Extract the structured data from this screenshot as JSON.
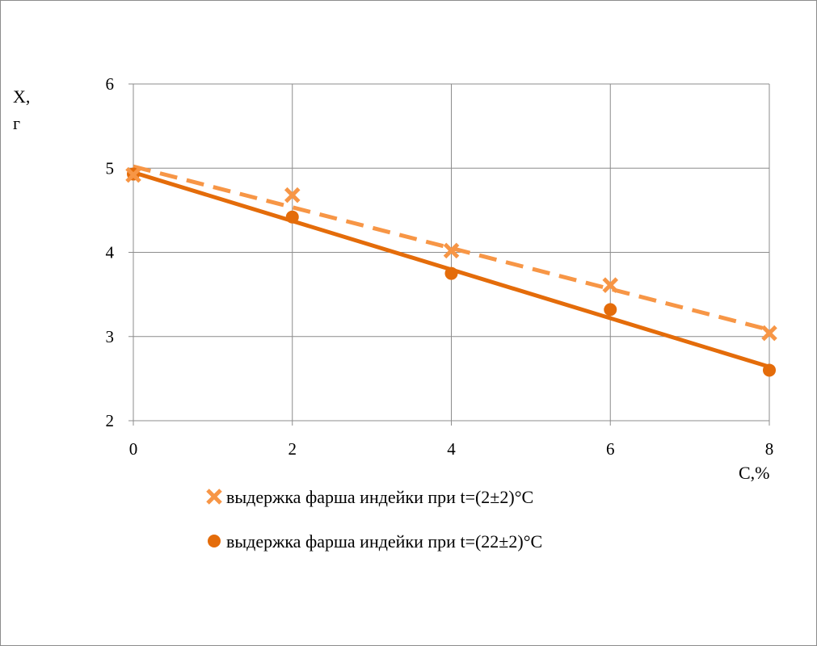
{
  "chart_data": {
    "type": "scatter",
    "ylabel_line1": "X,",
    "ylabel_line2": "г",
    "xlabel": "С,%",
    "xlim": [
      0,
      8
    ],
    "ylim": [
      2,
      6
    ],
    "xticks": [
      "0",
      "2",
      "4",
      "6",
      "8"
    ],
    "yticks": [
      "2",
      "3",
      "4",
      "5",
      "6"
    ],
    "grid": true,
    "legend_position": "bottom",
    "series": [
      {
        "name": "выдержка фарша индейки при t=(2±2)°С",
        "marker": "x",
        "color": "#F79646",
        "x": [
          0,
          2,
          4,
          6,
          8
        ],
        "y": [
          4.92,
          4.68,
          4.02,
          3.61,
          3.04
        ],
        "trendline": {
          "style": "dashed",
          "color": "#F79646",
          "from": [
            0,
            5.02
          ],
          "to": [
            8,
            3.08
          ]
        }
      },
      {
        "name": "выдержка фарша индейки при t=(22±2)°С",
        "marker": "circle",
        "color": "#E46C0A",
        "x": [
          0,
          2,
          4,
          6,
          8
        ],
        "y": [
          4.93,
          4.42,
          3.75,
          3.32,
          2.6
        ],
        "trendline": {
          "style": "solid",
          "color": "#E46C0A",
          "from": [
            0,
            4.95
          ],
          "to": [
            8,
            2.64
          ]
        }
      }
    ]
  }
}
